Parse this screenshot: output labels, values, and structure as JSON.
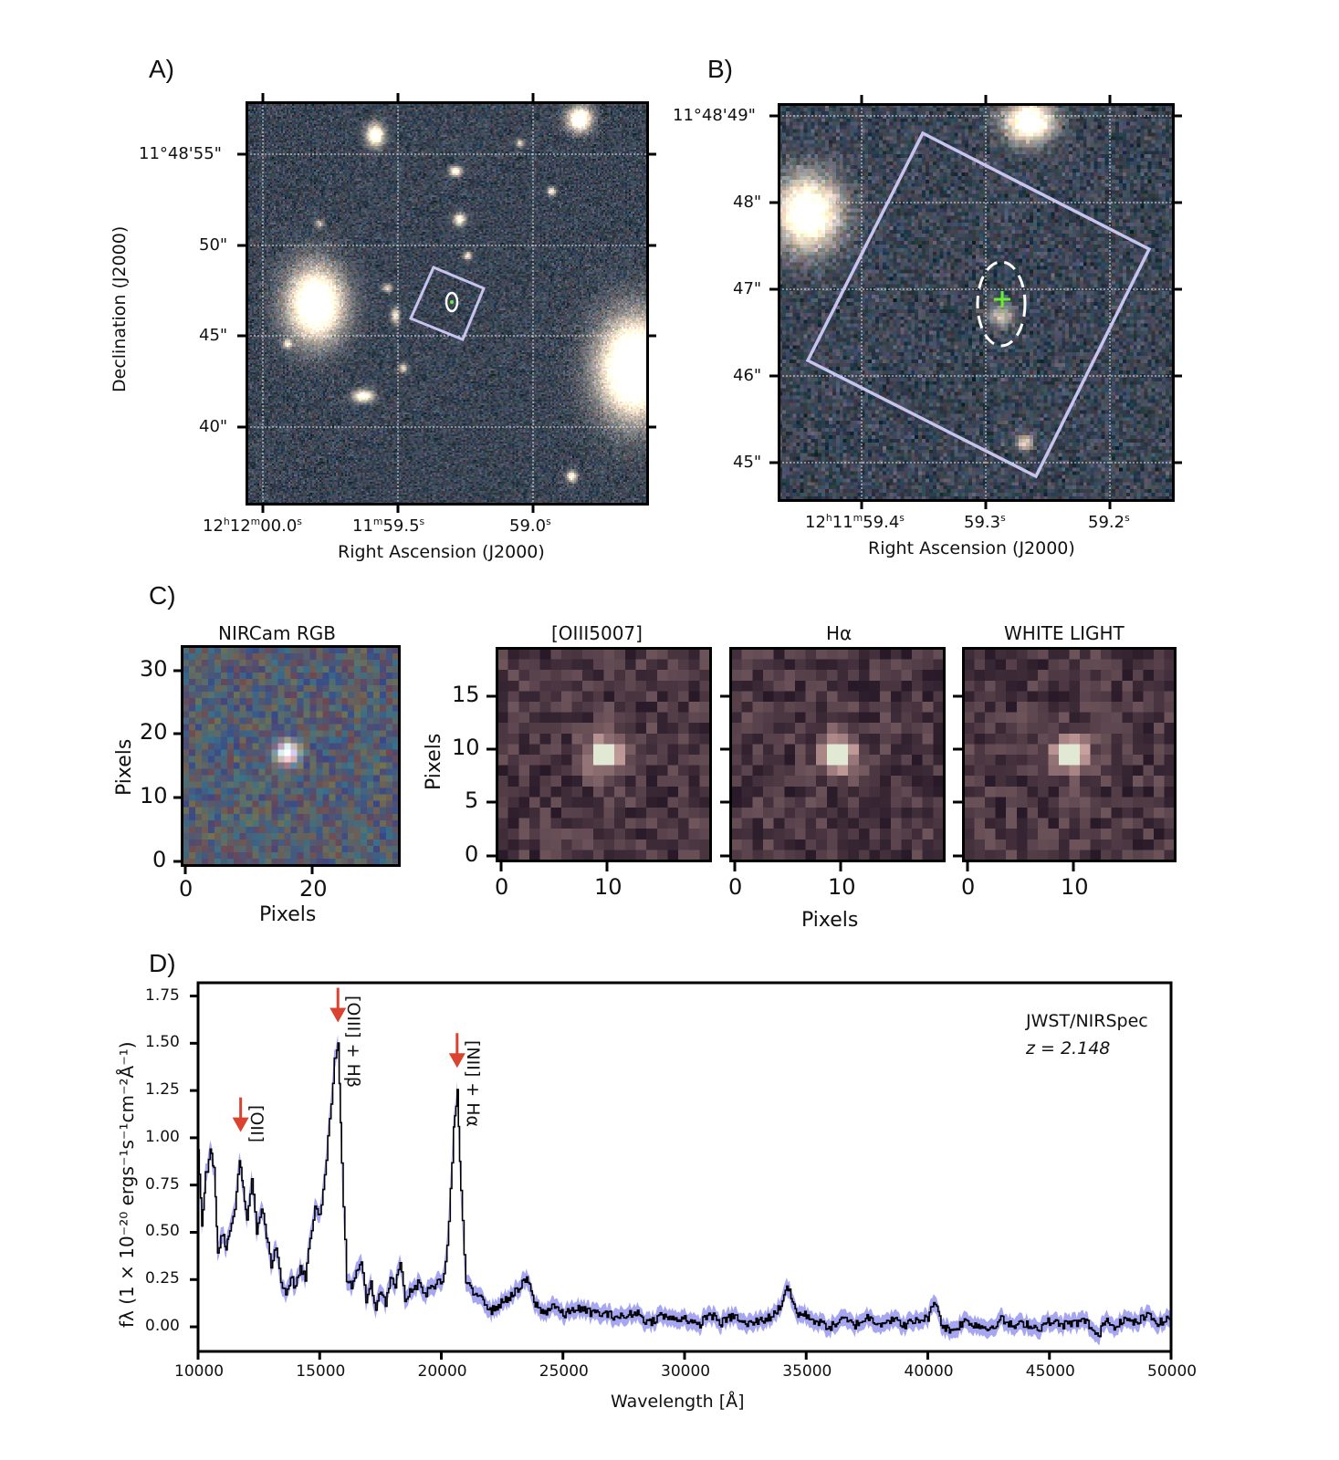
{
  "figure": {
    "panels": {
      "A": {
        "letter": "A)",
        "xlabel": "Right Ascension (J2000)",
        "ylabel": "Declination (J2000)",
        "xticks": [
          {
            "h": "12",
            "hs": "h",
            "m": "12",
            "ms": "m",
            "s": "00.0",
            "ss": "s"
          },
          {
            "h": "",
            "hs": "",
            "m": "11",
            "ms": "m",
            "s": "59.5",
            "ss": "s"
          },
          {
            "h": "",
            "hs": "",
            "m": "",
            "ms": "",
            "s": "59.0",
            "ss": "s"
          }
        ],
        "yticks": [
          "11°48'55\"",
          "50\"",
          "45\"",
          "40\""
        ],
        "overlay": {
          "aperture": "rotated square slit footprint",
          "marker": "ellipse with green cross"
        }
      },
      "B": {
        "letter": "B)",
        "xlabel": "Right Ascension (J2000)",
        "xticks": [
          {
            "prefix_h": "12",
            "hs": "h",
            "m": "11",
            "ms": "m",
            "s": "59.4",
            "ss": "s"
          },
          {
            "prefix_h": "",
            "hs": "",
            "m": "",
            "ms": "",
            "s": "59.3",
            "ss": "s"
          },
          {
            "prefix_h": "",
            "hs": "",
            "m": "",
            "ms": "",
            "s": "59.2",
            "ss": "s"
          }
        ],
        "yticks": [
          "11°48'49\"",
          "48\"",
          "47\"",
          "46\"",
          "45\""
        ],
        "overlay": {
          "aperture": "rotated square slit footprint",
          "marker": "dashed ellipse with green cross"
        }
      },
      "C": {
        "letter": "C)",
        "nircam": {
          "title": "NIRCam RGB",
          "xlabel": "Pixels",
          "ylabel": "Pixels",
          "xticks": [
            "0",
            "20"
          ],
          "yticks": [
            "0",
            "10",
            "20",
            "30"
          ]
        },
        "maps": [
          {
            "title": "[OIII5007]"
          },
          {
            "title": "Hα"
          },
          {
            "title": "WHITE LIGHT"
          }
        ],
        "maps_xlabel": "Pixels",
        "maps_ylabel": "Pixels",
        "maps_xticks": [
          "0",
          "10"
        ],
        "maps_yticks": [
          "0",
          "5",
          "10",
          "15"
        ]
      },
      "D": {
        "letter": "D)"
      }
    },
    "colors": {
      "spectrum_line": "#000000",
      "error_band": "#8888ee",
      "arrow": "#d9432f",
      "aperture": "#c8c4ee",
      "cross": "#66ee33"
    }
  },
  "chart_data": {
    "type": "line",
    "title": "",
    "annotation": [
      "JWST/NIRSpec",
      "z = 2.148"
    ],
    "xlabel": "Wavelength [Å]",
    "ylabel": "fλ (1 × 10⁻²⁰ ergs⁻¹s⁻¹cm⁻²Å⁻¹)",
    "xlim": [
      10000,
      50000
    ],
    "ylim": [
      -0.13,
      1.82
    ],
    "xticks": [
      10000,
      15000,
      20000,
      25000,
      30000,
      35000,
      40000,
      45000,
      50000
    ],
    "yticks": [
      "0.00",
      "0.25",
      "0.50",
      "0.75",
      "1.00",
      "1.25",
      "1.50",
      "1.75"
    ],
    "grid": false,
    "lines": [
      {
        "label": "[OII]",
        "wavelength": 11750,
        "peak": 0.9
      },
      {
        "label": "[OIII] + Hβ",
        "wavelength": 15750,
        "peak": 1.48
      },
      {
        "label": "[NII] + Hα",
        "wavelength": 20650,
        "peak": 1.24
      }
    ],
    "series": [
      {
        "name": "flux",
        "x": [
          10000,
          10150,
          10300,
          10500,
          10650,
          10800,
          11000,
          11150,
          11300,
          11500,
          11700,
          11850,
          12000,
          12200,
          12400,
          12600,
          12800,
          13000,
          13200,
          13400,
          13600,
          13800,
          14000,
          14200,
          14400,
          14600,
          14800,
          15000,
          15200,
          15400,
          15600,
          15750,
          15900,
          16100,
          16300,
          16500,
          16700,
          16900,
          17100,
          17300,
          17500,
          17700,
          17900,
          18100,
          18300,
          18500,
          18700,
          18900,
          19100,
          19300,
          19500,
          19700,
          19900,
          20100,
          20300,
          20500,
          20650,
          20800,
          21000,
          21300,
          21600,
          22000,
          22400,
          22800,
          23200,
          23500,
          23800,
          24200,
          24600,
          25000,
          25500,
          26000,
          26500,
          27000,
          27500,
          28000,
          28500,
          29000,
          29500,
          30000,
          30500,
          31000,
          31500,
          32000,
          32500,
          33000,
          33500,
          33900,
          34200,
          34600,
          35000,
          35500,
          36000,
          36500,
          37000,
          37500,
          38000,
          38500,
          39000,
          39500,
          40000,
          40300,
          40600,
          41000,
          41500,
          42000,
          42500,
          43000,
          43500,
          44000,
          44500,
          45000,
          45500,
          46000,
          46500,
          47000,
          47300,
          47600,
          48000,
          48500,
          49000,
          49500,
          50000
        ],
        "y": [
          0.95,
          0.55,
          0.8,
          0.92,
          0.85,
          0.4,
          0.5,
          0.42,
          0.5,
          0.62,
          0.9,
          0.72,
          0.55,
          0.78,
          0.5,
          0.63,
          0.48,
          0.32,
          0.42,
          0.25,
          0.18,
          0.26,
          0.21,
          0.32,
          0.25,
          0.48,
          0.62,
          0.6,
          0.8,
          1.1,
          1.4,
          1.48,
          0.85,
          0.25,
          0.22,
          0.3,
          0.32,
          0.15,
          0.24,
          0.08,
          0.2,
          0.12,
          0.27,
          0.22,
          0.34,
          0.15,
          0.18,
          0.2,
          0.24,
          0.16,
          0.2,
          0.22,
          0.24,
          0.26,
          0.55,
          1.05,
          1.24,
          0.7,
          0.24,
          0.17,
          0.18,
          0.08,
          0.12,
          0.16,
          0.2,
          0.26,
          0.13,
          0.07,
          0.12,
          0.06,
          0.1,
          0.08,
          0.07,
          0.06,
          0.05,
          0.08,
          0.02,
          0.06,
          0.04,
          0.05,
          0.0,
          0.07,
          0.02,
          0.06,
          0.01,
          0.03,
          0.05,
          0.1,
          0.22,
          0.07,
          0.06,
          0.02,
          0.0,
          0.04,
          0.01,
          0.05,
          0.02,
          0.04,
          0.01,
          0.03,
          0.05,
          0.14,
          0.0,
          -0.02,
          0.03,
          0.01,
          -0.01,
          0.04,
          0.0,
          0.02,
          -0.01,
          0.03,
          0.01,
          0.02,
          0.03,
          -0.06,
          0.05,
          0.0,
          0.04,
          0.02,
          0.06,
          0.02,
          0.05
        ]
      }
    ]
  }
}
